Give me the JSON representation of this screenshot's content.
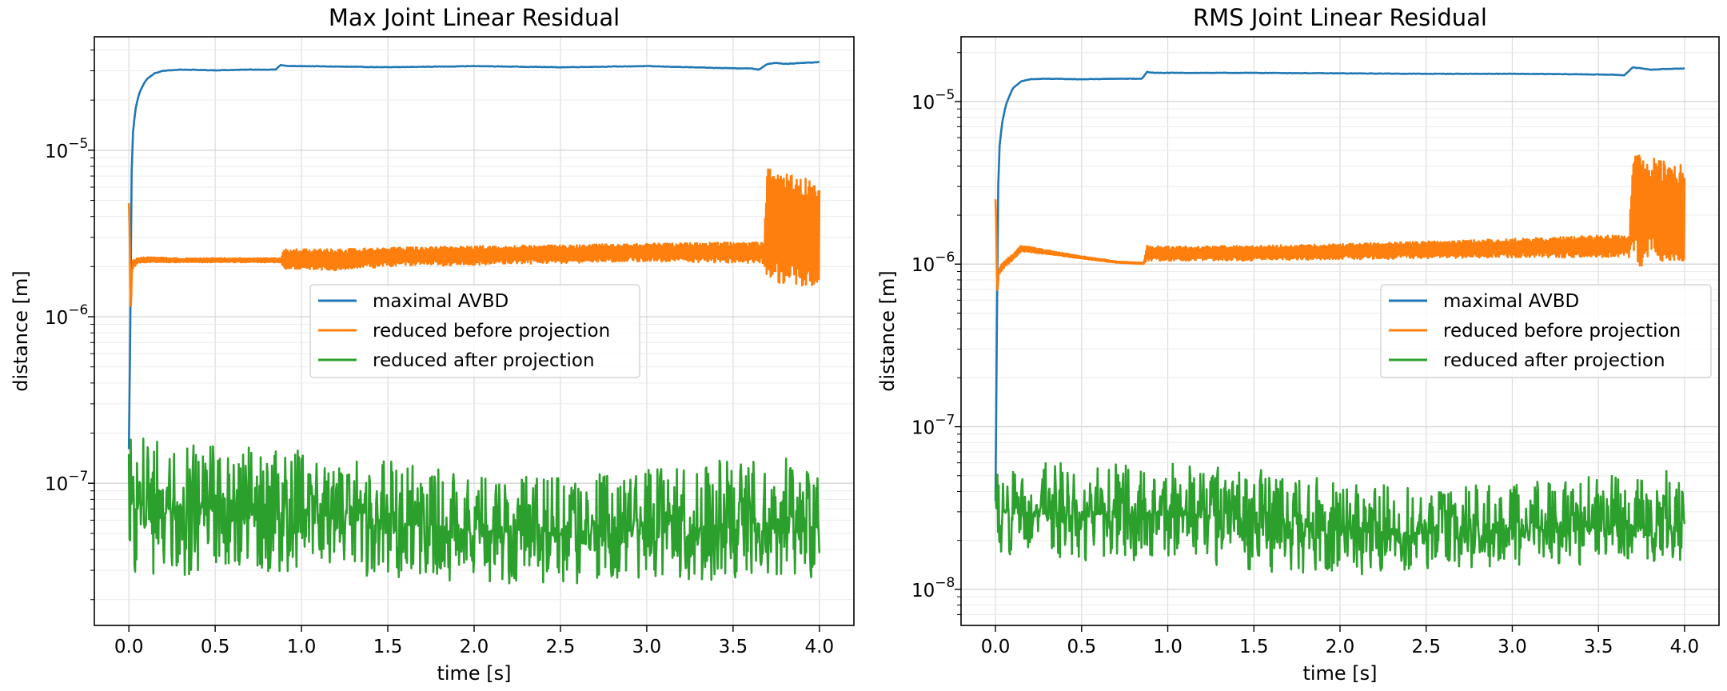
{
  "chart_data": [
    {
      "type": "line",
      "title": "Max Joint Linear Residual",
      "xlabel": "time [s]",
      "ylabel": "distance [m]",
      "xlim": [
        -0.2,
        4.2
      ],
      "ylim": [
        1.4e-08,
        4.8e-05
      ],
      "yscale": "log",
      "grid": true,
      "legend_position": "center-right",
      "xticks": [
        "0.0",
        "0.5",
        "1.0",
        "1.5",
        "2.0",
        "2.5",
        "3.0",
        "3.5",
        "4.0"
      ],
      "yticks": [
        {
          "base": "10",
          "exp": "−7"
        },
        {
          "base": "10",
          "exp": "−6"
        },
        {
          "base": "10",
          "exp": "−5"
        }
      ],
      "series": [
        {
          "name": "maximal AVBD",
          "color": "#1f77b4",
          "kind": "smooth",
          "x": [
            0.0,
            0.01,
            0.02,
            0.04,
            0.06,
            0.1,
            0.15,
            0.2,
            0.3,
            0.5,
            0.7,
            0.85,
            0.88,
            0.92,
            1.0,
            1.5,
            2.0,
            2.5,
            3.0,
            3.4,
            3.6,
            3.65,
            3.7,
            3.75,
            3.8,
            4.0
          ],
          "y": [
            1.6e-07,
            1e-06,
            1.15e-05,
            1.8e-05,
            2.2e-05,
            2.65e-05,
            2.9e-05,
            3e-05,
            3.05e-05,
            3.02e-05,
            3.05e-05,
            3.05e-05,
            3.25e-05,
            3.2e-05,
            3.2e-05,
            3.15e-05,
            3.2e-05,
            3.15e-05,
            3.2e-05,
            3.12e-05,
            3.1e-05,
            3.05e-05,
            3.3e-05,
            3.35e-05,
            3.3e-05,
            3.38e-05
          ]
        },
        {
          "name": "reduced before projection",
          "color": "#ff7f0e",
          "kind": "band",
          "x": [
            0.0,
            0.01,
            0.02,
            0.05,
            0.1,
            0.3,
            0.6,
            0.88,
            0.9,
            1.2,
            1.5,
            2.0,
            2.5,
            3.0,
            3.5,
            3.68,
            3.7,
            3.8,
            4.0
          ],
          "low": [
            4.8e-06,
            1e-06,
            1.9e-06,
            2.1e-06,
            2.12e-06,
            2.12e-06,
            2.12e-06,
            2.12e-06,
            1.95e-06,
            1.9e-06,
            2e-06,
            2.05e-06,
            2.1e-06,
            2.15e-06,
            2.1e-06,
            2.1e-06,
            1.5e-06,
            1.5e-06,
            1.55e-06
          ],
          "high": [
            4.8e-06,
            1e-06,
            2.2e-06,
            2.25e-06,
            2.28e-06,
            2.25e-06,
            2.25e-06,
            2.25e-06,
            2.55e-06,
            2.55e-06,
            2.6e-06,
            2.65e-06,
            2.7e-06,
            2.75e-06,
            2.8e-06,
            2.8e-06,
            7.8e-06,
            7.2e-06,
            6.5e-06
          ],
          "mid": [
            4.8e-06,
            1e-06,
            2.05e-06,
            2.17e-06,
            2.2e-06,
            2.18e-06,
            2.18e-06,
            2.18e-06,
            2.25e-06,
            2.22e-06,
            2.3e-06,
            2.35e-06,
            2.4e-06,
            2.45e-06,
            2.45e-06,
            2.45e-06,
            3.5e-06,
            3.3e-06,
            2.2e-06
          ]
        },
        {
          "name": "reduced after projection",
          "color": "#2ca02c",
          "kind": "noise",
          "x": [
            0.0,
            0.5,
            1.0,
            1.5,
            2.0,
            2.5,
            3.0,
            3.5,
            4.0
          ],
          "low": [
            2.8e-08,
            2.8e-08,
            2.8e-08,
            2.6e-08,
            2.5e-08,
            2.5e-08,
            2.5e-08,
            2.5e-08,
            2.6e-08
          ],
          "high": [
            1.9e-07,
            1.7e-07,
            1.6e-07,
            1.4e-07,
            1.1e-07,
            1.1e-07,
            1.2e-07,
            1.4e-07,
            1.5e-07
          ],
          "mid": [
            7.5e-08,
            7e-08,
            6.5e-08,
            6e-08,
            5.2e-08,
            5e-08,
            5e-08,
            5.2e-08,
            5.5e-08
          ]
        }
      ]
    },
    {
      "type": "line",
      "title": "RMS Joint Linear Residual",
      "xlabel": "time [s]",
      "ylabel": "distance [m]",
      "xlim": [
        -0.2,
        4.2
      ],
      "ylim": [
        6e-09,
        2.5e-05
      ],
      "yscale": "log",
      "grid": true,
      "legend_position": "center-right",
      "xticks": [
        "0.0",
        "0.5",
        "1.0",
        "1.5",
        "2.0",
        "2.5",
        "3.0",
        "3.5",
        "4.0"
      ],
      "yticks": [
        {
          "base": "10",
          "exp": "−8"
        },
        {
          "base": "10",
          "exp": "−7"
        },
        {
          "base": "10",
          "exp": "−6"
        },
        {
          "base": "10",
          "exp": "−5"
        }
      ],
      "series": [
        {
          "name": "maximal AVBD",
          "color": "#1f77b4",
          "kind": "smooth",
          "x": [
            0.0,
            0.01,
            0.02,
            0.04,
            0.06,
            0.1,
            0.15,
            0.2,
            0.3,
            0.5,
            0.7,
            0.85,
            0.88,
            0.92,
            1.0,
            1.5,
            2.0,
            2.5,
            3.0,
            3.4,
            3.6,
            3.65,
            3.7,
            3.75,
            3.8,
            4.0
          ],
          "y": [
            3.5e-08,
            5e-07,
            4.8e-06,
            7.5e-06,
            9.5e-06,
            1.2e-05,
            1.33e-05,
            1.37e-05,
            1.38e-05,
            1.37e-05,
            1.38e-05,
            1.38e-05,
            1.52e-05,
            1.5e-05,
            1.5e-05,
            1.5e-05,
            1.49e-05,
            1.48e-05,
            1.48e-05,
            1.47e-05,
            1.46e-05,
            1.45e-05,
            1.62e-05,
            1.6e-05,
            1.57e-05,
            1.6e-05
          ]
        },
        {
          "name": "reduced before projection",
          "color": "#ff7f0e",
          "kind": "band",
          "x": [
            0.0,
            0.01,
            0.02,
            0.05,
            0.1,
            0.15,
            0.2,
            0.3,
            0.5,
            0.7,
            0.86,
            0.88,
            1.0,
            1.5,
            2.0,
            2.5,
            3.0,
            3.5,
            3.65,
            3.68,
            3.7,
            3.8,
            4.0
          ],
          "low": [
            2.5e-06,
            6.5e-07,
            8.5e-07,
            9.5e-07,
            1.05e-06,
            1.2e-06,
            1.18e-06,
            1.15e-06,
            1.08e-06,
            1.02e-06,
            1e-06,
            1.05e-06,
            1.05e-06,
            1.05e-06,
            1.07e-06,
            1.08e-06,
            1.1e-06,
            1.1e-06,
            1.1e-06,
            1.1e-06,
            9.5e-07,
            1e-06,
            1.05e-06
          ],
          "high": [
            2.5e-06,
            6.5e-07,
            9.5e-07,
            1.05e-06,
            1.15e-06,
            1.3e-06,
            1.28e-06,
            1.22e-06,
            1.12e-06,
            1.04e-06,
            1.02e-06,
            1.3e-06,
            1.28e-06,
            1.3e-06,
            1.33e-06,
            1.38e-06,
            1.43e-06,
            1.5e-06,
            1.5e-06,
            1.5e-06,
            4.8e-06,
            4.5e-06,
            4.1e-06
          ],
          "mid": [
            2.5e-06,
            6.5e-07,
            9e-07,
            1e-06,
            1.1e-06,
            1.25e-06,
            1.23e-06,
            1.18e-06,
            1.1e-06,
            1.03e-06,
            1.01e-06,
            1.18e-06,
            1.16e-06,
            1.17e-06,
            1.2e-06,
            1.23e-06,
            1.26e-06,
            1.3e-06,
            1.3e-06,
            1.3e-06,
            2.2e-06,
            2.1e-06,
            1.1e-06
          ]
        },
        {
          "name": "reduced after projection",
          "color": "#2ca02c",
          "kind": "noise",
          "x": [
            0.0,
            0.5,
            1.0,
            1.5,
            2.0,
            2.5,
            3.0,
            3.5,
            4.0
          ],
          "low": [
            1.6e-08,
            1.5e-08,
            1.5e-08,
            1.3e-08,
            1.2e-08,
            1.3e-08,
            1.4e-08,
            1.4e-08,
            1.5e-08
          ],
          "high": [
            6e-08,
            6e-08,
            6e-08,
            6e-08,
            4.5e-08,
            4.3e-08,
            4.5e-08,
            5e-08,
            5.5e-08
          ],
          "mid": [
            3e-08,
            2.9e-08,
            2.9e-08,
            2.8e-08,
            2.3e-08,
            2.2e-08,
            2.3e-08,
            2.4e-08,
            2.5e-08
          ]
        }
      ]
    }
  ]
}
